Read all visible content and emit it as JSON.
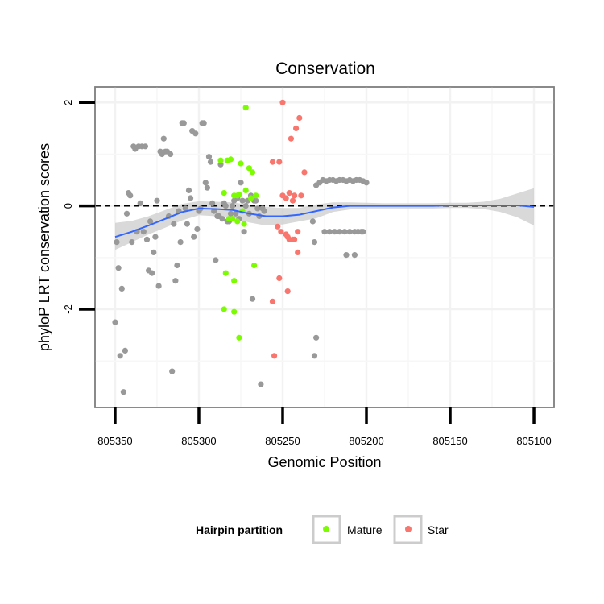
{
  "chart_data": {
    "type": "scatter",
    "title": "Conservation",
    "xlabel": "Genomic Position",
    "ylabel": "phyloP LRT conservation scores",
    "xlim": [
      805362,
      805088
    ],
    "ylim": [
      -3.9,
      2.3
    ],
    "x_reversed": true,
    "xticks": [
      805350,
      805300,
      805250,
      805200,
      805150,
      805100
    ],
    "xtick_labels": [
      "805350",
      "805300",
      "805250",
      "805200",
      "805150",
      "805100"
    ],
    "yticks": [
      -2,
      0,
      2
    ],
    "ytick_labels": [
      "-2",
      "0",
      "2"
    ],
    "hline": 0,
    "grid": true,
    "colors": {
      "Other": "#999999",
      "Mature": "#7cfc00",
      "Star": "#f8766d",
      "smooth": "#3366ff",
      "ribbon": "#cccccc",
      "hline": "#000000"
    },
    "legend": {
      "title": "Hairpin partition",
      "position": "bottom",
      "entries": [
        "Mature",
        "Star"
      ]
    },
    "series": [
      {
        "name": "Other",
        "points": [
          [
            805350,
            -2.25
          ],
          [
            805349,
            -0.7
          ],
          [
            805348,
            -1.2
          ],
          [
            805347,
            -2.9
          ],
          [
            805346,
            -1.6
          ],
          [
            805345,
            -3.6
          ],
          [
            805344,
            -2.8
          ],
          [
            805343,
            -0.15
          ],
          [
            805342,
            0.25
          ],
          [
            805341,
            0.2
          ],
          [
            805340,
            -0.7
          ],
          [
            805339,
            1.15
          ],
          [
            805338,
            1.1
          ],
          [
            805337,
            -0.5
          ],
          [
            805336,
            1.15
          ],
          [
            805335,
            0.05
          ],
          [
            805334,
            1.15
          ],
          [
            805333,
            -0.5
          ],
          [
            805332,
            1.15
          ],
          [
            805331,
            -0.65
          ],
          [
            805330,
            -1.25
          ],
          [
            805329,
            -0.3
          ],
          [
            805328,
            -1.3
          ],
          [
            805327,
            -0.9
          ],
          [
            805326,
            -0.6
          ],
          [
            805325,
            0.1
          ],
          [
            805324,
            -1.55
          ],
          [
            805323,
            1.05
          ],
          [
            805322,
            1.0
          ],
          [
            805321,
            1.3
          ],
          [
            805320,
            1.05
          ],
          [
            805319,
            1.05
          ],
          [
            805318,
            -0.2
          ],
          [
            805317,
            1.0
          ],
          [
            805316,
            -3.2
          ],
          [
            805315,
            -0.35
          ],
          [
            805314,
            -1.45
          ],
          [
            805313,
            -1.15
          ],
          [
            805312,
            -0.1
          ],
          [
            805311,
            -0.7
          ],
          [
            805310,
            1.6
          ],
          [
            805309,
            1.6
          ],
          [
            805308,
            -0.05
          ],
          [
            805307,
            -0.35
          ],
          [
            805306,
            0.3
          ],
          [
            805305,
            0.15
          ],
          [
            805304,
            1.45
          ],
          [
            805303,
            -0.6
          ],
          [
            805302,
            1.4
          ],
          [
            805301,
            -0.45
          ],
          [
            805300,
            -0.1
          ],
          [
            805299,
            -0.05
          ],
          [
            805298,
            1.6
          ],
          [
            805297,
            1.6
          ],
          [
            805296,
            0.45
          ],
          [
            805295,
            0.35
          ],
          [
            805294,
            0.95
          ],
          [
            805293,
            0.85
          ],
          [
            805292,
            0.05
          ],
          [
            805291,
            -0.1
          ],
          [
            805290,
            -1.05
          ],
          [
            805289,
            -0.2
          ],
          [
            805288,
            -0.2
          ],
          [
            805287,
            0.8
          ],
          [
            805286,
            -0.25
          ],
          [
            805285,
            0.05
          ],
          [
            805284,
            0.0
          ],
          [
            805283,
            -0.3
          ],
          [
            805282,
            -0.3
          ],
          [
            805281,
            -0.15
          ],
          [
            805280,
            0.0
          ],
          [
            805279,
            0.1
          ],
          [
            805278,
            -0.15
          ],
          [
            805277,
            0.15
          ],
          [
            805276,
            -0.25
          ],
          [
            805275,
            0.45
          ],
          [
            805274,
            0.1
          ],
          [
            805273,
            -0.5
          ],
          [
            805272,
            0.0
          ],
          [
            805271,
            0.1
          ],
          [
            805270,
            -0.15
          ],
          [
            805269,
            0.2
          ],
          [
            805268,
            -1.8
          ],
          [
            805267,
            0.1
          ],
          [
            805266,
            0.1
          ],
          [
            805265,
            -0.05
          ],
          [
            805264,
            -0.2
          ],
          [
            805263,
            -3.45
          ],
          [
            805262,
            -0.05
          ],
          [
            805261,
            -0.1
          ],
          [
            805230,
            0.4
          ],
          [
            805228,
            0.45
          ],
          [
            805226,
            0.5
          ],
          [
            805224,
            0.48
          ],
          [
            805222,
            0.5
          ],
          [
            805220,
            0.5
          ],
          [
            805218,
            0.48
          ],
          [
            805216,
            0.5
          ],
          [
            805214,
            0.5
          ],
          [
            805212,
            0.48
          ],
          [
            805210,
            0.5
          ],
          [
            805208,
            0.48
          ],
          [
            805206,
            0.5
          ],
          [
            805204,
            0.5
          ],
          [
            805202,
            0.48
          ],
          [
            805200,
            0.45
          ],
          [
            805232,
            -0.3
          ],
          [
            805231,
            -0.7
          ],
          [
            805230,
            -2.55
          ],
          [
            805231,
            -2.9
          ],
          [
            805225,
            -0.5
          ],
          [
            805222,
            -0.5
          ],
          [
            805219,
            -0.5
          ],
          [
            805216,
            -0.5
          ],
          [
            805213,
            -0.5
          ],
          [
            805210,
            -0.5
          ],
          [
            805207,
            -0.5
          ],
          [
            805205,
            -0.5
          ],
          [
            805203,
            -0.5
          ],
          [
            805212,
            -0.95
          ],
          [
            805207,
            -0.95
          ],
          [
            805202,
            -0.5
          ]
        ]
      },
      {
        "name": "Mature",
        "points": [
          [
            805272,
            1.9
          ],
          [
            805283,
            0.88
          ],
          [
            805281,
            0.9
          ],
          [
            805275,
            0.82
          ],
          [
            805287,
            0.88
          ],
          [
            805270,
            0.73
          ],
          [
            805268,
            0.65
          ],
          [
            805279,
            0.2
          ],
          [
            805277,
            0.2
          ],
          [
            805276,
            0.22
          ],
          [
            805272,
            0.3
          ],
          [
            805266,
            0.2
          ],
          [
            805285,
            0.25
          ],
          [
            805269,
            0.15
          ],
          [
            805282,
            -0.25
          ],
          [
            805274,
            -0.1
          ],
          [
            805273,
            -0.35
          ],
          [
            805277,
            -0.3
          ],
          [
            805280,
            -0.25
          ],
          [
            805267,
            -1.15
          ],
          [
            805284,
            -1.3
          ],
          [
            805279,
            -1.45
          ],
          [
            805285,
            -2.0
          ],
          [
            805279,
            -2.05
          ],
          [
            805276,
            -2.55
          ]
        ]
      },
      {
        "name": "Star",
        "points": [
          [
            805250,
            2.0
          ],
          [
            805240,
            1.7
          ],
          [
            805242,
            1.5
          ],
          [
            805245,
            1.3
          ],
          [
            805252,
            0.85
          ],
          [
            805256,
            0.85
          ],
          [
            805237,
            0.65
          ],
          [
            805250,
            0.2
          ],
          [
            805248,
            0.15
          ],
          [
            805246,
            0.25
          ],
          [
            805243,
            0.2
          ],
          [
            805239,
            0.2
          ],
          [
            805244,
            0.1
          ],
          [
            805253,
            -0.4
          ],
          [
            805241,
            -0.5
          ],
          [
            805251,
            -0.5
          ],
          [
            805247,
            -0.6
          ],
          [
            805246,
            -0.65
          ],
          [
            805244,
            -0.65
          ],
          [
            805248,
            -0.55
          ],
          [
            805243,
            -0.65
          ],
          [
            805241,
            -0.9
          ],
          [
            805252,
            -1.4
          ],
          [
            805247,
            -1.65
          ],
          [
            805256,
            -1.85
          ],
          [
            805255,
            -2.9
          ]
        ]
      }
    ],
    "smooth_fit": {
      "x": [
        805350,
        805340,
        805330,
        805320,
        805310,
        805300,
        805290,
        805280,
        805270,
        805260,
        805250,
        805240,
        805230,
        805220,
        805210,
        805200,
        805190,
        805180,
        805170,
        805160,
        805150,
        805140,
        805130,
        805120,
        805110,
        805100
      ],
      "y": [
        -0.6,
        -0.5,
        -0.38,
        -0.25,
        -0.12,
        -0.05,
        -0.06,
        -0.08,
        -0.15,
        -0.2,
        -0.2,
        -0.17,
        -0.1,
        -0.03,
        0.0,
        0.0,
        0.0,
        0.0,
        0.0,
        0.0,
        0.01,
        0.01,
        0.01,
        0.01,
        0.01,
        -0.02
      ],
      "lower": [
        -0.85,
        -0.7,
        -0.55,
        -0.42,
        -0.28,
        -0.18,
        -0.2,
        -0.23,
        -0.32,
        -0.38,
        -0.36,
        -0.3,
        -0.24,
        -0.12,
        -0.07,
        -0.05,
        -0.05,
        -0.05,
        -0.05,
        -0.05,
        -0.04,
        -0.04,
        -0.06,
        -0.12,
        -0.22,
        -0.38
      ],
      "upper": [
        -0.33,
        -0.29,
        -0.2,
        -0.08,
        0.04,
        0.09,
        0.08,
        0.07,
        0.02,
        -0.02,
        -0.04,
        -0.04,
        0.03,
        0.07,
        0.07,
        0.06,
        0.05,
        0.05,
        0.05,
        0.05,
        0.06,
        0.06,
        0.08,
        0.14,
        0.24,
        0.34
      ]
    }
  }
}
